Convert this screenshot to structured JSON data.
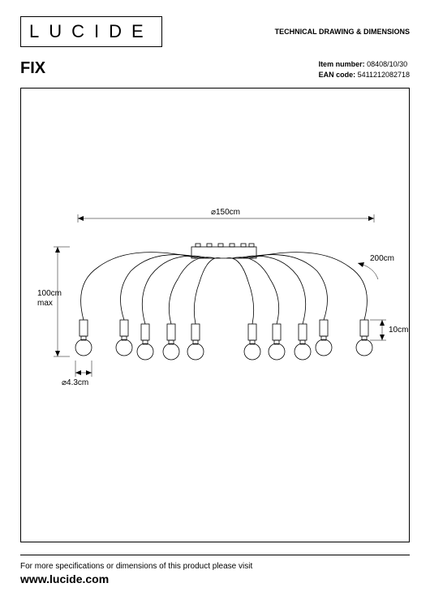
{
  "header": {
    "logo": "LUCIDE",
    "title": "TECHNICAL DRAWING & DIMENSIONS"
  },
  "product": {
    "name": "FIX",
    "item_label": "Item number:",
    "item_number": "08408/10/30",
    "ean_label": "EAN code:",
    "ean_code": "5411212082718"
  },
  "dimensions": {
    "width": "⌀150cm",
    "height_left_val": "100cm",
    "height_left_sub": "max",
    "bulb_diameter": "⌀4.3cm",
    "socket_height": "10cm",
    "cable_length": "200cm"
  },
  "drawing": {
    "stroke_color": "#000000",
    "bulb_count": 10,
    "ceiling_box_w": 70,
    "ceiling_box_h": 14
  },
  "footer": {
    "text": "For more specifications or dimensions of this product please visit",
    "url": "www.lucide.com"
  }
}
